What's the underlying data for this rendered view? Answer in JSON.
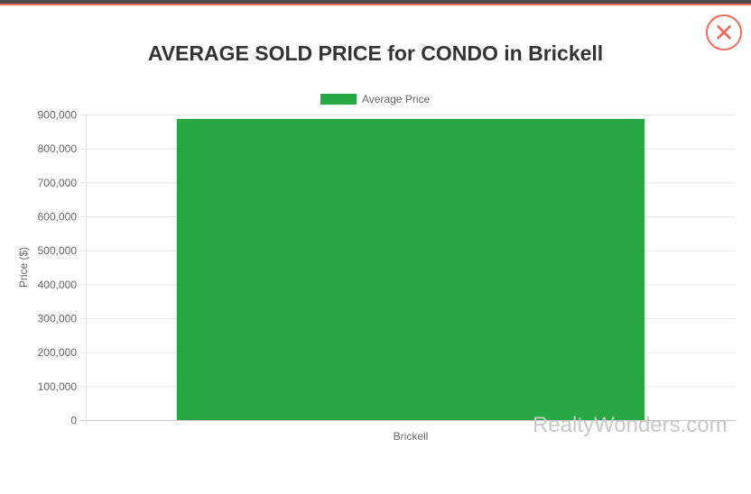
{
  "modal": {
    "close_icon": "x-circle-icon"
  },
  "watermark": "RealtyWonders.com",
  "chart_data": {
    "type": "bar",
    "title": "AVERAGE SOLD PRICE for CONDO in Brickell",
    "categories": [
      "Brickell"
    ],
    "series": [
      {
        "name": "Average Price",
        "values": [
          887000
        ],
        "color": "#28a745"
      }
    ],
    "ylabel": "Price ($)",
    "xlabel": "",
    "ylim": [
      0,
      900000
    ],
    "yticks": [
      "0",
      "100,000",
      "200,000",
      "300,000",
      "400,000",
      "500,000",
      "600,000",
      "700,000",
      "800,000",
      "900,000"
    ],
    "grid": true,
    "legend": "top"
  }
}
